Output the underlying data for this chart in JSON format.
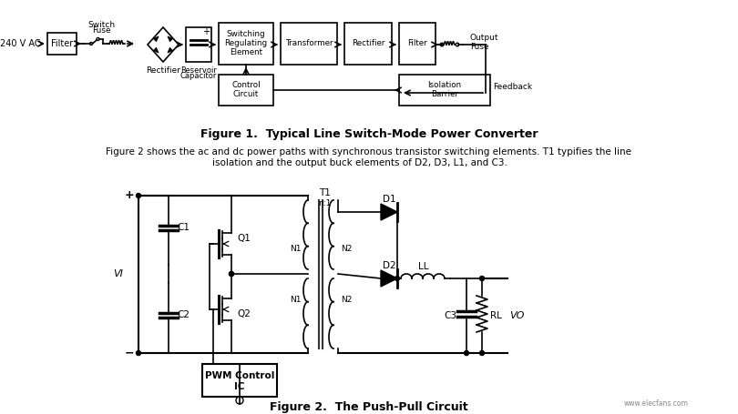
{
  "background_color": "#ffffff",
  "fig1_title": "Figure 1.  Typical Line Switch-Mode Power Converter",
  "fig2_title": "Figure 2.  The Push-Pull Circuit",
  "description_line1": "Figure 2 shows the ac and dc power paths with synchronous transistor switching elements. T1 typifies the line",
  "description_line2": "isolation and the output buck elements of D2, D3, L1, and C3.",
  "watermark": "www.elecfans.com",
  "fig_width": 8.1,
  "fig_height": 4.55,
  "dpi": 100
}
